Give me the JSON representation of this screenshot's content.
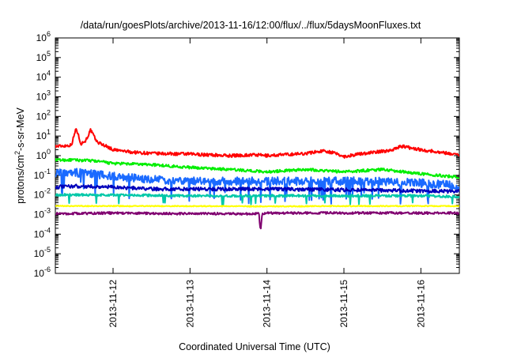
{
  "chart_data": {
    "type": "line",
    "title": "/data/run/goesPlots/archive/2013-11-16/12:00/flux/../flux/5daysMoonFluxes.txt",
    "xlabel": "Coordinated Universal Time (UTC)",
    "ylabel": "protons/cm²-s-sr-MeV",
    "ylabel_parts": {
      "pre": "protons/cm",
      "sup": "2",
      "post": "-s-sr-MeV"
    },
    "y_scale": "log",
    "ylim": [
      1e-06,
      1000000.0
    ],
    "y_ticks": [
      {
        "value": 1e-06,
        "base": "10",
        "exp": "-6"
      },
      {
        "value": 1e-05,
        "base": "10",
        "exp": "-5"
      },
      {
        "value": 0.0001,
        "base": "10",
        "exp": "-4"
      },
      {
        "value": 0.001,
        "base": "10",
        "exp": "-3"
      },
      {
        "value": 0.01,
        "base": "10",
        "exp": "-2"
      },
      {
        "value": 0.1,
        "base": "10",
        "exp": "-1"
      },
      {
        "value": 1,
        "base": "10",
        "exp": "0"
      },
      {
        "value": 10.0,
        "base": "10",
        "exp": "1"
      },
      {
        "value": 100.0,
        "base": "10",
        "exp": "2"
      },
      {
        "value": 1000.0,
        "base": "10",
        "exp": "3"
      },
      {
        "value": 10000.0,
        "base": "10",
        "exp": "4"
      },
      {
        "value": 100000.0,
        "base": "10",
        "exp": "5"
      },
      {
        "value": 1000000.0,
        "base": "10",
        "exp": "6"
      }
    ],
    "xlim": [
      "2013-11-11T06:00",
      "2013-11-16T12:00"
    ],
    "x_ticks": [
      {
        "value": "2013-11-12T00:00",
        "label": "2013-11-12"
      },
      {
        "value": "2013-11-13T00:00",
        "label": "2013-11-13"
      },
      {
        "value": "2013-11-14T00:00",
        "label": "2013-11-14"
      },
      {
        "value": "2013-11-15T00:00",
        "label": "2013-11-15"
      },
      {
        "value": "2013-11-16T00:00",
        "label": "2013-11-16"
      }
    ],
    "grid": false,
    "series": [
      {
        "color": "#ff0000",
        "points": [
          [
            "2013-11-11T06:00",
            3.0
          ],
          [
            "2013-11-11T09:00",
            3.2
          ],
          [
            "2013-11-11T11:00",
            3.5
          ],
          [
            "2013-11-11T12:30",
            25
          ],
          [
            "2013-11-11T14:00",
            4.0
          ],
          [
            "2013-11-11T15:30",
            6
          ],
          [
            "2013-11-11T17:00",
            20
          ],
          [
            "2013-11-11T19:00",
            5
          ],
          [
            "2013-11-11T22:00",
            3.0
          ],
          [
            "2013-11-12T00:00",
            2.0
          ],
          [
            "2013-11-12T06:00",
            1.5
          ],
          [
            "2013-11-12T12:00",
            1.3
          ],
          [
            "2013-11-13T00:00",
            1.2
          ],
          [
            "2013-11-13T12:00",
            1.0
          ],
          [
            "2013-11-13T20:00",
            1.1
          ],
          [
            "2013-11-14T00:00",
            1.0
          ],
          [
            "2013-11-14T12:00",
            1.3
          ],
          [
            "2013-11-14T18:00",
            1.8
          ],
          [
            "2013-11-14T22:00",
            1.2
          ],
          [
            "2013-11-15T00:00",
            0.9
          ],
          [
            "2013-11-15T06:00",
            1.3
          ],
          [
            "2013-11-15T14:00",
            1.8
          ],
          [
            "2013-11-15T18:00",
            3.0
          ],
          [
            "2013-11-16T00:00",
            2.0
          ],
          [
            "2013-11-16T06:00",
            1.5
          ],
          [
            "2013-11-16T12:00",
            1.1
          ]
        ]
      },
      {
        "color": "#00ee00",
        "points": [
          [
            "2013-11-11T06:00",
            0.6
          ],
          [
            "2013-11-11T12:00",
            0.6
          ],
          [
            "2013-11-11T18:00",
            0.55
          ],
          [
            "2013-11-12T00:00",
            0.4
          ],
          [
            "2013-11-12T12:00",
            0.35
          ],
          [
            "2013-11-13T00:00",
            0.25
          ],
          [
            "2013-11-13T12:00",
            0.2
          ],
          [
            "2013-11-14T00:00",
            0.15
          ],
          [
            "2013-11-14T12:00",
            0.2
          ],
          [
            "2013-11-15T00:00",
            0.15
          ],
          [
            "2013-11-15T12:00",
            0.2
          ],
          [
            "2013-11-16T00:00",
            0.12
          ],
          [
            "2013-11-16T12:00",
            0.08
          ]
        ]
      },
      {
        "color": "#1a6aff",
        "points": [
          [
            "2013-11-11T06:00",
            0.13
          ],
          [
            "2013-11-11T12:00",
            0.14
          ],
          [
            "2013-11-12T00:00",
            0.09
          ],
          [
            "2013-11-12T12:00",
            0.06
          ],
          [
            "2013-11-13T00:00",
            0.05
          ],
          [
            "2013-11-13T12:00",
            0.05
          ],
          [
            "2013-11-14T00:00",
            0.05
          ],
          [
            "2013-11-14T12:00",
            0.05
          ],
          [
            "2013-11-15T00:00",
            0.05
          ],
          [
            "2013-11-15T12:00",
            0.05
          ],
          [
            "2013-11-16T00:00",
            0.04
          ],
          [
            "2013-11-16T12:00",
            0.03
          ]
        ]
      },
      {
        "color": "#0000bb",
        "points": [
          [
            "2013-11-11T06:00",
            0.025
          ],
          [
            "2013-11-11T12:00",
            0.028
          ],
          [
            "2013-11-12T00:00",
            0.025
          ],
          [
            "2013-11-12T12:00",
            0.02
          ],
          [
            "2013-11-13T00:00",
            0.02
          ],
          [
            "2013-11-14T00:00",
            0.02
          ],
          [
            "2013-11-15T00:00",
            0.018
          ],
          [
            "2013-11-16T00:00",
            0.016
          ],
          [
            "2013-11-16T12:00",
            0.015
          ]
        ]
      },
      {
        "color": "#00c8a8",
        "points": [
          [
            "2013-11-11T06:00",
            0.01
          ],
          [
            "2013-11-12T00:00",
            0.01
          ],
          [
            "2013-11-13T00:00",
            0.009
          ],
          [
            "2013-11-14T00:00",
            0.009
          ],
          [
            "2013-11-15T00:00",
            0.009
          ],
          [
            "2013-11-16T00:00",
            0.009
          ],
          [
            "2013-11-16T12:00",
            0.008
          ]
        ]
      },
      {
        "color": "#ffff00",
        "points": [
          [
            "2013-11-11T06:00",
            0.0027
          ],
          [
            "2013-11-12T00:00",
            0.0027
          ],
          [
            "2013-11-13T00:00",
            0.0027
          ],
          [
            "2013-11-14T00:00",
            0.0026
          ],
          [
            "2013-11-15T00:00",
            0.0027
          ],
          [
            "2013-11-16T00:00",
            0.0027
          ],
          [
            "2013-11-16T12:00",
            0.0027
          ]
        ]
      },
      {
        "color": "#800070",
        "points": [
          [
            "2013-11-11T06:00",
            0.0011
          ],
          [
            "2013-11-12T00:00",
            0.0012
          ],
          [
            "2013-11-13T00:00",
            0.0011
          ],
          [
            "2013-11-13T21:30",
            0.0011
          ],
          [
            "2013-11-13T22:00",
            0.00013
          ],
          [
            "2013-11-13T22:30",
            0.0011
          ],
          [
            "2013-11-14T00:00",
            0.0012
          ],
          [
            "2013-11-15T00:00",
            0.0012
          ],
          [
            "2013-11-16T00:00",
            0.0012
          ],
          [
            "2013-11-16T12:00",
            0.0012
          ]
        ]
      }
    ]
  }
}
